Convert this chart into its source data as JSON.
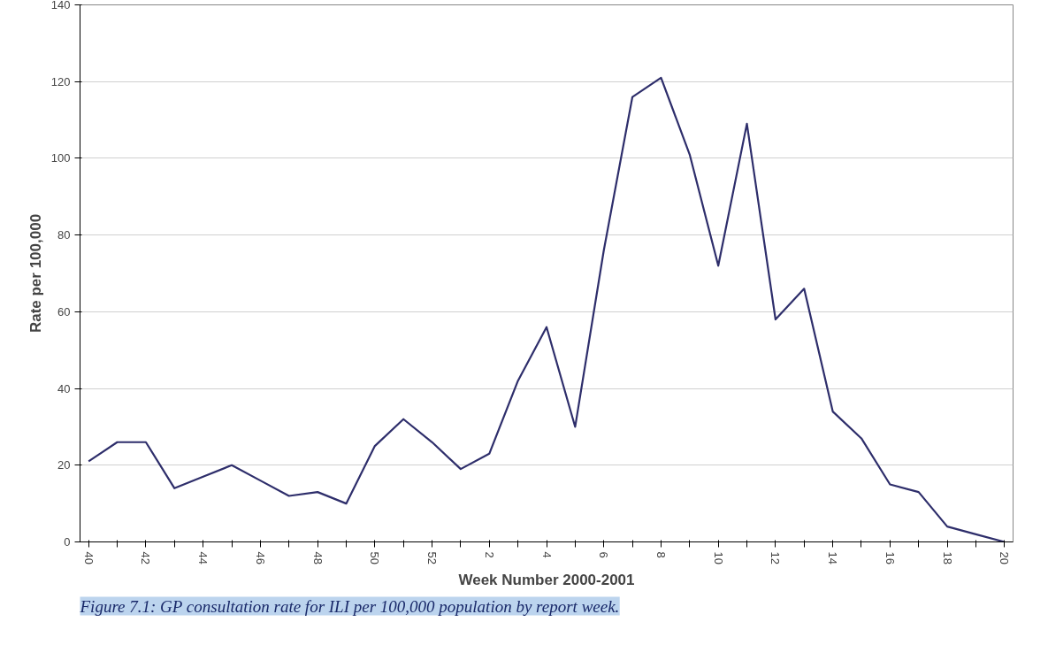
{
  "chart_data": {
    "type": "line",
    "xlabel": "Week Number 2000-2001",
    "ylabel": "Rate per 100,000",
    "categories": [
      "40",
      null,
      "42",
      null,
      "44",
      null,
      "46",
      null,
      "48",
      null,
      "50",
      null,
      "52",
      null,
      "2",
      null,
      "4",
      null,
      "6",
      null,
      "8",
      null,
      "10",
      null,
      "12",
      null,
      "14",
      null,
      "16",
      null,
      "18",
      null,
      "20"
    ],
    "series": [
      {
        "color": "#2e2e6b",
        "values": [
          21,
          26,
          26,
          14,
          17,
          20,
          16,
          12,
          13,
          10,
          25,
          32,
          26,
          19,
          23,
          42,
          56,
          30,
          76,
          116,
          121,
          101,
          72,
          109,
          58,
          66,
          34,
          27,
          15,
          13,
          4,
          2,
          0
        ]
      }
    ],
    "ylim": [
      0,
      140
    ],
    "yticks": [
      0,
      20,
      40,
      60,
      80,
      100,
      120,
      140
    ],
    "grid": "y",
    "marker": "none",
    "line_style": "solid",
    "annotations": [
      "Figure 7.1: GP consultation rate for ILI per 100,000 population by report week."
    ]
  }
}
